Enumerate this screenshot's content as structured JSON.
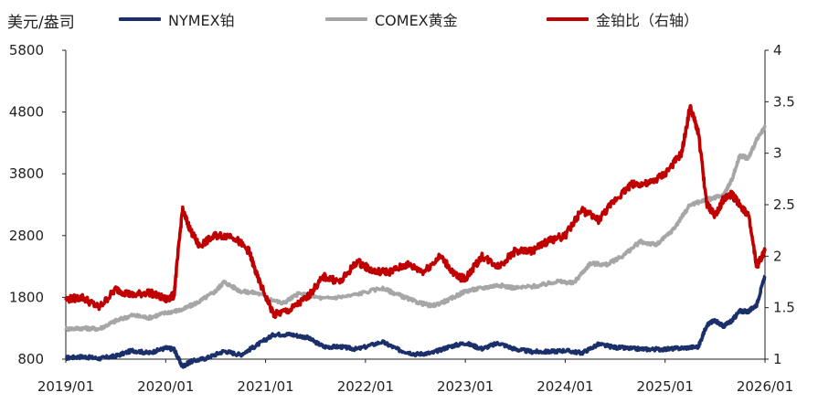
{
  "chart_data": {
    "type": "line",
    "unit_label": "美元/盎司",
    "x_ticks": [
      "2019/01",
      "2020/01",
      "2021/01",
      "2022/01",
      "2023/01",
      "2024/01",
      "2025/01",
      "2026/01"
    ],
    "y_left": {
      "ticks": [
        "800",
        "1800",
        "2800",
        "3800",
        "4800",
        "5800"
      ],
      "range": [
        800,
        5800
      ]
    },
    "y_right": {
      "ticks": [
        "1",
        "1.5",
        "2",
        "2.5",
        "3",
        "3.5",
        "4"
      ],
      "range": [
        1,
        4
      ]
    },
    "legend_position": "top",
    "series": [
      {
        "name": "NYMEX铂",
        "axis": "left",
        "color": "#1b2f6b",
        "points": [
          [
            "2019-01",
            820
          ],
          [
            "2019-03",
            840
          ],
          [
            "2019-05",
            810
          ],
          [
            "2019-07",
            850
          ],
          [
            "2019-09",
            940
          ],
          [
            "2019-11",
            900
          ],
          [
            "2020-01",
            980
          ],
          [
            "2020-02",
            960
          ],
          [
            "2020-03",
            680
          ],
          [
            "2020-04",
            760
          ],
          [
            "2020-06",
            820
          ],
          [
            "2020-08",
            930
          ],
          [
            "2020-10",
            870
          ],
          [
            "2020-12",
            1030
          ],
          [
            "2021-02",
            1200
          ],
          [
            "2021-04",
            1200
          ],
          [
            "2021-06",
            1150
          ],
          [
            "2021-08",
            1000
          ],
          [
            "2021-10",
            1000
          ],
          [
            "2021-12",
            960
          ],
          [
            "2022-03",
            1080
          ],
          [
            "2022-05",
            950
          ],
          [
            "2022-07",
            880
          ],
          [
            "2022-09",
            900
          ],
          [
            "2022-11",
            1000
          ],
          [
            "2023-01",
            1060
          ],
          [
            "2023-03",
            970
          ],
          [
            "2023-05",
            1060
          ],
          [
            "2023-07",
            960
          ],
          [
            "2023-09",
            920
          ],
          [
            "2023-11",
            920
          ],
          [
            "2024-01",
            940
          ],
          [
            "2024-03",
            900
          ],
          [
            "2024-05",
            1040
          ],
          [
            "2024-07",
            990
          ],
          [
            "2024-09",
            970
          ],
          [
            "2024-11",
            960
          ],
          [
            "2025-01",
            960
          ],
          [
            "2025-03",
            980
          ],
          [
            "2025-05",
            1000
          ],
          [
            "2025-06",
            1350
          ],
          [
            "2025-07",
            1430
          ],
          [
            "2025-08",
            1330
          ],
          [
            "2025-09",
            1420
          ],
          [
            "2025-10",
            1580
          ],
          [
            "2025-11",
            1570
          ],
          [
            "2025-12",
            1680
          ],
          [
            "2026-01",
            2150
          ]
        ]
      },
      {
        "name": "COMEX黄金",
        "axis": "left",
        "color": "#a6a6a6",
        "points": [
          [
            "2019-01",
            1290
          ],
          [
            "2019-03",
            1300
          ],
          [
            "2019-05",
            1290
          ],
          [
            "2019-07",
            1420
          ],
          [
            "2019-09",
            1510
          ],
          [
            "2019-11",
            1470
          ],
          [
            "2020-01",
            1550
          ],
          [
            "2020-03",
            1600
          ],
          [
            "2020-05",
            1730
          ],
          [
            "2020-07",
            1900
          ],
          [
            "2020-08",
            2050
          ],
          [
            "2020-10",
            1900
          ],
          [
            "2020-12",
            1870
          ],
          [
            "2021-03",
            1700
          ],
          [
            "2021-05",
            1860
          ],
          [
            "2021-08",
            1780
          ],
          [
            "2021-11",
            1820
          ],
          [
            "2022-03",
            1950
          ],
          [
            "2022-05",
            1840
          ],
          [
            "2022-07",
            1730
          ],
          [
            "2022-09",
            1660
          ],
          [
            "2022-11",
            1760
          ],
          [
            "2023-01",
            1900
          ],
          [
            "2023-03",
            1950
          ],
          [
            "2023-05",
            2000
          ],
          [
            "2023-07",
            1950
          ],
          [
            "2023-10",
            1990
          ],
          [
            "2023-12",
            2060
          ],
          [
            "2024-02",
            2030
          ],
          [
            "2024-04",
            2350
          ],
          [
            "2024-06",
            2330
          ],
          [
            "2024-08",
            2480
          ],
          [
            "2024-10",
            2700
          ],
          [
            "2024-12",
            2650
          ],
          [
            "2025-02",
            2900
          ],
          [
            "2025-04",
            3300
          ],
          [
            "2025-06",
            3380
          ],
          [
            "2025-08",
            3450
          ],
          [
            "2025-09",
            3700
          ],
          [
            "2025-10",
            4100
          ],
          [
            "2025-11",
            4050
          ],
          [
            "2025-12",
            4350
          ],
          [
            "2026-01",
            4550
          ]
        ]
      },
      {
        "name": "金铂比（右轴）",
        "axis": "right",
        "color": "#c00000",
        "points": [
          [
            "2019-01",
            1.58
          ],
          [
            "2019-03",
            1.6
          ],
          [
            "2019-05",
            1.5
          ],
          [
            "2019-07",
            1.68
          ],
          [
            "2019-09",
            1.62
          ],
          [
            "2019-11",
            1.65
          ],
          [
            "2020-01",
            1.58
          ],
          [
            "2020-02",
            1.62
          ],
          [
            "2020-03",
            2.45
          ],
          [
            "2020-04",
            2.25
          ],
          [
            "2020-05",
            2.1
          ],
          [
            "2020-07",
            2.2
          ],
          [
            "2020-09",
            2.2
          ],
          [
            "2020-11",
            2.05
          ],
          [
            "2020-12",
            1.8
          ],
          [
            "2021-02",
            1.43
          ],
          [
            "2021-04",
            1.48
          ],
          [
            "2021-06",
            1.6
          ],
          [
            "2021-08",
            1.8
          ],
          [
            "2021-10",
            1.75
          ],
          [
            "2021-12",
            1.95
          ],
          [
            "2022-02",
            1.85
          ],
          [
            "2022-04",
            1.85
          ],
          [
            "2022-06",
            1.92
          ],
          [
            "2022-08",
            1.85
          ],
          [
            "2022-10",
            2.0
          ],
          [
            "2022-12",
            1.8
          ],
          [
            "2023-01",
            1.78
          ],
          [
            "2023-03",
            2.0
          ],
          [
            "2023-05",
            1.9
          ],
          [
            "2023-07",
            2.05
          ],
          [
            "2023-09",
            2.05
          ],
          [
            "2023-11",
            2.15
          ],
          [
            "2024-01",
            2.2
          ],
          [
            "2024-03",
            2.45
          ],
          [
            "2024-05",
            2.35
          ],
          [
            "2024-07",
            2.55
          ],
          [
            "2024-09",
            2.7
          ],
          [
            "2024-11",
            2.7
          ],
          [
            "2025-01",
            2.8
          ],
          [
            "2025-03",
            3.0
          ],
          [
            "2025-04",
            3.45
          ],
          [
            "2025-05",
            3.2
          ],
          [
            "2025-06",
            2.5
          ],
          [
            "2025-07",
            2.4
          ],
          [
            "2025-08",
            2.55
          ],
          [
            "2025-09",
            2.6
          ],
          [
            "2025-10",
            2.5
          ],
          [
            "2025-11",
            2.4
          ],
          [
            "2025-12",
            1.9
          ],
          [
            "2026-01",
            2.05
          ]
        ]
      }
    ]
  }
}
